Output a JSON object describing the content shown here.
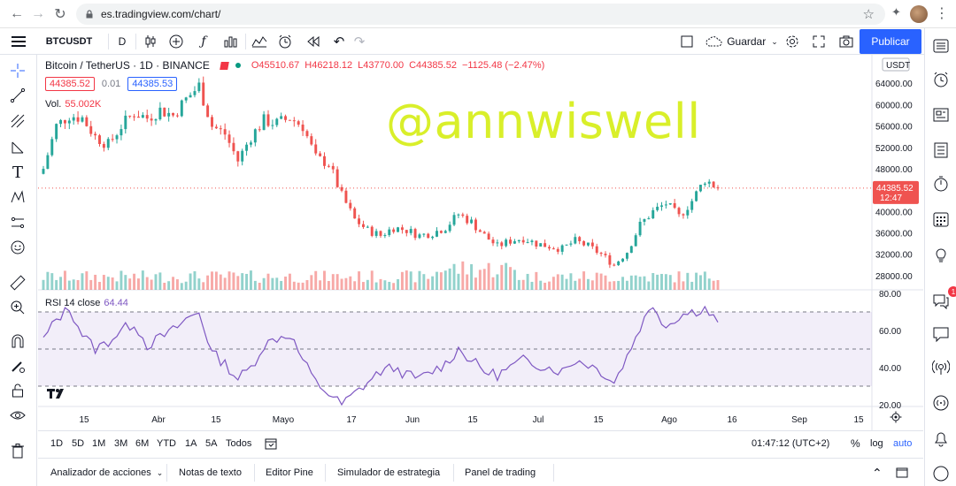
{
  "browser": {
    "url": "es.tradingview.com/chart/"
  },
  "toolbar": {
    "symbol": "BTCUSDT",
    "interval": "D",
    "save_label": "Guardar",
    "publish_label": "Publicar"
  },
  "legend": {
    "title": "Bitcoin / TetherUS · 1D · BINANCE",
    "open": "O45510.67",
    "high": "H46218.12",
    "low": "L43770.00",
    "close": "C44385.52",
    "change": "−1125.48 (−2.47%)",
    "bid": "44385.52",
    "spread": "0.01",
    "ask": "44385.53",
    "vol_label": "Vol.",
    "vol_value": "55.002K",
    "rsi_label": "RSI 14 close",
    "rsi_value": "64.44"
  },
  "watermark": "@annwiswell",
  "price_axis": {
    "currency": "USDT",
    "labels": [
      "64000.00",
      "60000.00",
      "56000.00",
      "52000.00",
      "48000.00",
      "40000.00",
      "36000.00",
      "32000.00",
      "28000.00"
    ],
    "last_price": "44385.52",
    "countdown": "12:47"
  },
  "rsi_axis": {
    "labels": [
      "80.00",
      "60.00",
      "40.00",
      "20.00"
    ]
  },
  "time_axis": {
    "labels": [
      "15",
      "Abr",
      "15",
      "Mayo",
      "17",
      "Jun",
      "15",
      "Jul",
      "15",
      "Ago",
      "16",
      "Sep",
      "15"
    ]
  },
  "bottom_toolbar": {
    "ranges": [
      "1D",
      "5D",
      "1M",
      "3M",
      "6M",
      "YTD",
      "1A",
      "5A",
      "Todos"
    ],
    "clock": "01:47:12 (UTC+2)",
    "percent": "%",
    "log": "log",
    "auto": "auto"
  },
  "panel_tabs": [
    "Analizador de acciones",
    "Notas de texto",
    "Editor Pine",
    "Simulador de estrategia",
    "Panel de trading"
  ],
  "right_bar": {
    "badge": "1"
  },
  "colors": {
    "up": "#26a69a",
    "down": "#ef5350",
    "accent": "#2962ff",
    "rsi": "#7e57c2",
    "watermark": "#d9ef2a"
  },
  "chart_data": {
    "type": "candlestick",
    "symbol": "Bitcoin / TetherUS",
    "interval": "1D",
    "exchange": "BINANCE",
    "price_range": [
      26000,
      68000
    ],
    "x": [
      "Mar 10",
      "Mar 13",
      "Mar 16",
      "Mar 19",
      "Mar 22",
      "Mar 25",
      "Mar 28",
      "Mar 31",
      "Abr 3",
      "Abr 6",
      "Abr 9",
      "Abr 12",
      "Abr 15",
      "Abr 18",
      "Abr 21",
      "Abr 24",
      "Abr 27",
      "Abr 30",
      "May 3",
      "May 6",
      "May 9",
      "May 12",
      "May 15",
      "May 18",
      "May 21",
      "May 24",
      "May 27",
      "May 30",
      "Jun 2",
      "Jun 5",
      "Jun 8",
      "Jun 11",
      "Jun 14",
      "Jun 17",
      "Jun 20",
      "Jun 23",
      "Jun 26",
      "Jun 29",
      "Jul 2",
      "Jul 5",
      "Jul 8",
      "Jul 11",
      "Jul 14",
      "Jul 17",
      "Jul 20",
      "Jul 23",
      "Jul 26",
      "Jul 29",
      "Ago 1",
      "Ago 4",
      "Ago 7",
      "Ago 10",
      "Ago 13"
    ],
    "close": [
      48000,
      56000,
      58000,
      57500,
      54000,
      52500,
      56000,
      58500,
      57500,
      59000,
      58000,
      61000,
      63500,
      56000,
      54500,
      49500,
      54000,
      57000,
      56500,
      57500,
      56000,
      50000,
      49000,
      43000,
      38500,
      36500,
      35500,
      37000,
      36500,
      35500,
      36000,
      37000,
      39500,
      38000,
      35500,
      33500,
      34500,
      35000,
      34000,
      33500,
      33000,
      34500,
      33500,
      32000,
      30000,
      32500,
      37500,
      40000,
      41500,
      39000,
      42000,
      46000,
      44385
    ],
    "volume_scale": "relative",
    "rsi": {
      "name": "RSI 14 close",
      "last": 64.44,
      "bands": [
        70,
        50,
        30
      ],
      "range": [
        20,
        80
      ],
      "values": [
        55,
        66,
        72,
        58,
        50,
        54,
        60,
        64,
        52,
        56,
        60,
        66,
        70,
        48,
        42,
        34,
        40,
        52,
        56,
        58,
        44,
        32,
        26,
        20,
        26,
        32,
        38,
        40,
        36,
        34,
        38,
        42,
        50,
        44,
        38,
        36,
        40,
        44,
        42,
        40,
        38,
        44,
        42,
        38,
        32,
        46,
        62,
        74,
        62,
        68,
        70,
        72,
        64
      ]
    }
  }
}
